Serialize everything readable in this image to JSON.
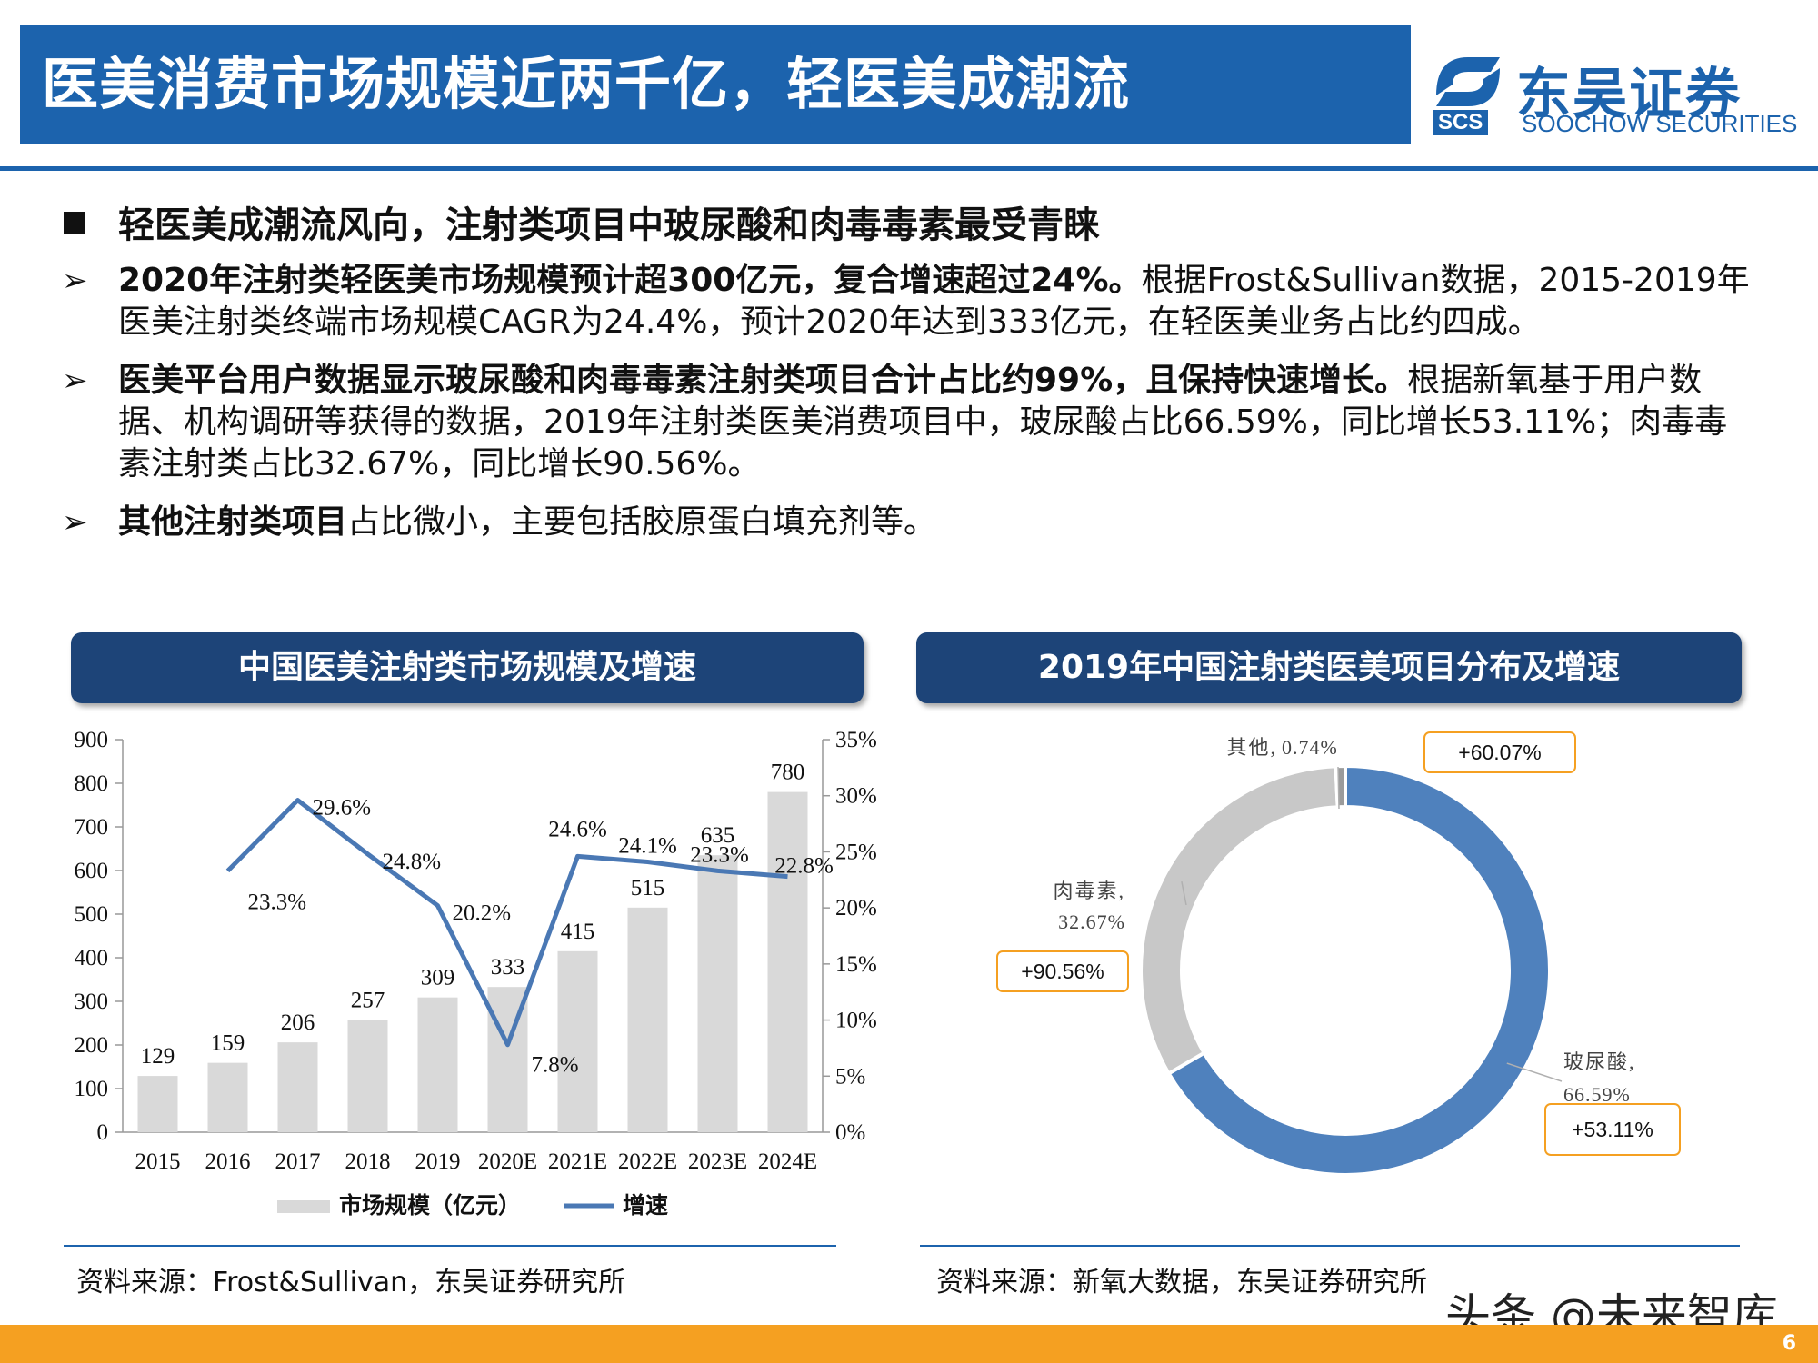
{
  "header": {
    "title": "医美消费市场规模近两千亿，轻医美成潮流",
    "logo_cn": "东吴证券",
    "logo_en": "SOOCHOW SECURITIES",
    "logo_abbr": "SCS"
  },
  "headline": "轻医美成潮流风向，注射类项目中玻尿酸和肉毒毒素最受青睐",
  "paragraphs": [
    {
      "bold": "2020年注射类轻医美市场规模预计超300亿元，复合增速超过24%。",
      "text": "根据Frost&Sullivan数据，2015-2019年医美注射类终端市场规模CAGR为24.4%，预计2020年达到333亿元，在轻医美业务占比约四成。"
    },
    {
      "bold": "医美平台用户数据显示玻尿酸和肉毒毒素注射类项目合计占比约99%，且保持快速增长。",
      "text": "根据新氧基于用户数据、机构调研等获得的数据，2019年注射类医美消费项目中，玻尿酸占比66.59%，同比增长53.11%；肉毒毒素注射类占比32.67%，同比增长90.56%。"
    },
    {
      "bold": "其他注射类项目",
      "text": "占比微小，主要包括胶原蛋白填充剂等。"
    }
  ],
  "panels": {
    "left_title": "中国医美注射类市场规模及增速",
    "right_title": "2019年中国注射类医美项目分布及增速",
    "left_source": "资料来源：Frost&Sullivan，东吴证券研究所",
    "right_source": "资料来源：新氧大数据，东吴证券研究所"
  },
  "watermark": "头条 @未来智库",
  "page_number": "6",
  "colors": {
    "brand": "#1c63ad",
    "panel": "#1d4478",
    "bar": "#d9d9d9",
    "line": "#4a78b4",
    "accent": "#f5a021",
    "donut_gray": "#c8c8c8"
  },
  "chart_data": [
    {
      "type": "bar",
      "categories": [
        "2015",
        "2016",
        "2017",
        "2018",
        "2019",
        "2020E",
        "2021E",
        "2022E",
        "2023E",
        "2024E"
      ],
      "series": [
        {
          "name": "市场规模（亿元）",
          "type": "bar",
          "axis": "left",
          "values": [
            129,
            159,
            206,
            257,
            309,
            333,
            415,
            515,
            635,
            780
          ],
          "labels": [
            "129",
            "159",
            "206",
            "257",
            "309",
            "333",
            "415",
            "515",
            "635",
            "780"
          ]
        },
        {
          "name": "增速",
          "type": "line",
          "axis": "right",
          "values": [
            null,
            23.3,
            29.6,
            24.8,
            20.2,
            7.8,
            24.6,
            24.1,
            23.3,
            22.8
          ],
          "labels": [
            "",
            "23.3%",
            "29.6%",
            "24.8%",
            "20.2%",
            "7.8%",
            "24.6%",
            "24.1%",
            "23.3%",
            "22.8%"
          ]
        }
      ],
      "ylim": [
        0,
        900
      ],
      "yticks": [
        "0",
        "100",
        "200",
        "300",
        "400",
        "500",
        "600",
        "700",
        "800",
        "900"
      ],
      "y2lim": [
        0,
        35
      ],
      "y2ticks": [
        "0%",
        "5%",
        "10%",
        "15%",
        "20%",
        "25%",
        "30%",
        "35%"
      ],
      "legend": "bottom"
    },
    {
      "type": "pie",
      "slices": [
        {
          "label": "玻尿酸,",
          "pct": "66.59%",
          "value": 66.59,
          "growth": "+53.11%",
          "color": "#4f81bd"
        },
        {
          "label": "肉毒素,",
          "pct": "32.67%",
          "value": 32.67,
          "growth": "+90.56%",
          "color": "#c8c8c8"
        },
        {
          "label": "其他,",
          "pct": "0.74%",
          "value": 0.74,
          "growth": "+60.07%",
          "color": "#9b9b9b"
        }
      ]
    }
  ]
}
